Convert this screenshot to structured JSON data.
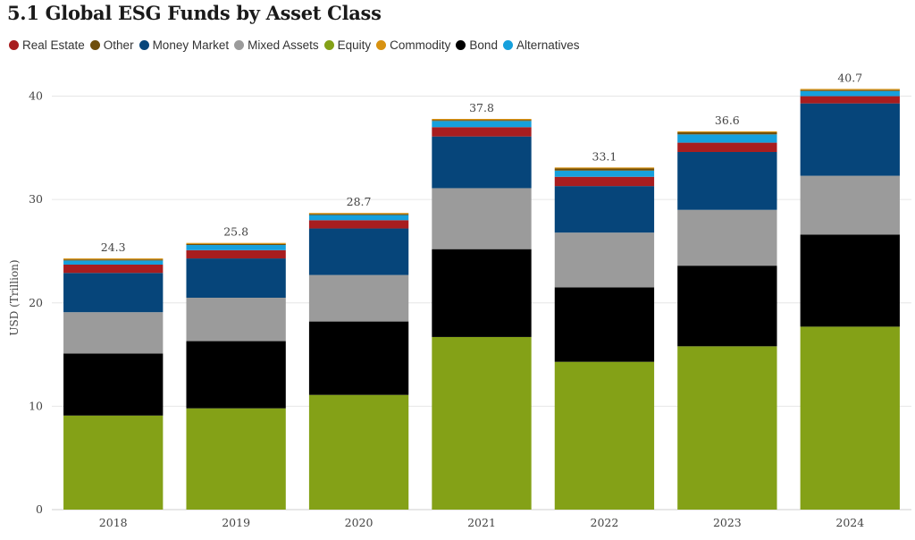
{
  "chart_data": {
    "type": "bar",
    "stacked": true,
    "title": "5.1 Global ESG Funds by Asset Class",
    "ylabel": "USD (Trillion)",
    "xlabel": "",
    "ylim": [
      0,
      41
    ],
    "yticks": [
      0,
      10,
      20,
      30,
      40
    ],
    "grid": true,
    "legend_position": "top-left",
    "categories": [
      "2018",
      "2019",
      "2020",
      "2021",
      "2022",
      "2023",
      "2024"
    ],
    "totals": [
      24.3,
      25.8,
      28.7,
      37.8,
      33.1,
      36.6,
      40.7
    ],
    "legend_order": [
      "Real Estate",
      "Other",
      "Money Market",
      "Mixed Assets",
      "Equity",
      "Commodity",
      "Bond",
      "Alternatives"
    ],
    "series": [
      {
        "name": "Equity",
        "color": "#84a117",
        "values": [
          9.1,
          9.8,
          11.1,
          16.7,
          14.3,
          15.8,
          17.7
        ]
      },
      {
        "name": "Bond",
        "color": "#000000",
        "values": [
          6.0,
          6.5,
          7.1,
          8.5,
          7.2,
          7.8,
          8.9
        ]
      },
      {
        "name": "Mixed Assets",
        "color": "#9b9b9b",
        "values": [
          4.0,
          4.2,
          4.5,
          5.9,
          5.3,
          5.4,
          5.7
        ]
      },
      {
        "name": "Money Market",
        "color": "#06457a",
        "values": [
          3.8,
          3.8,
          4.5,
          5.0,
          4.5,
          5.6,
          7.0
        ]
      },
      {
        "name": "Real Estate",
        "color": "#a81d1f",
        "values": [
          0.8,
          0.8,
          0.8,
          0.9,
          0.9,
          0.9,
          0.7
        ]
      },
      {
        "name": "Alternatives",
        "color": "#16a0dc",
        "values": [
          0.4,
          0.5,
          0.5,
          0.6,
          0.6,
          0.8,
          0.5
        ]
      },
      {
        "name": "Other",
        "color": "#6e4e0c",
        "values": [
          0.1,
          0.1,
          0.1,
          0.1,
          0.2,
          0.2,
          0.1
        ]
      },
      {
        "name": "Commodity",
        "color": "#d89211",
        "values": [
          0.1,
          0.1,
          0.1,
          0.1,
          0.1,
          0.1,
          0.1
        ]
      }
    ]
  }
}
